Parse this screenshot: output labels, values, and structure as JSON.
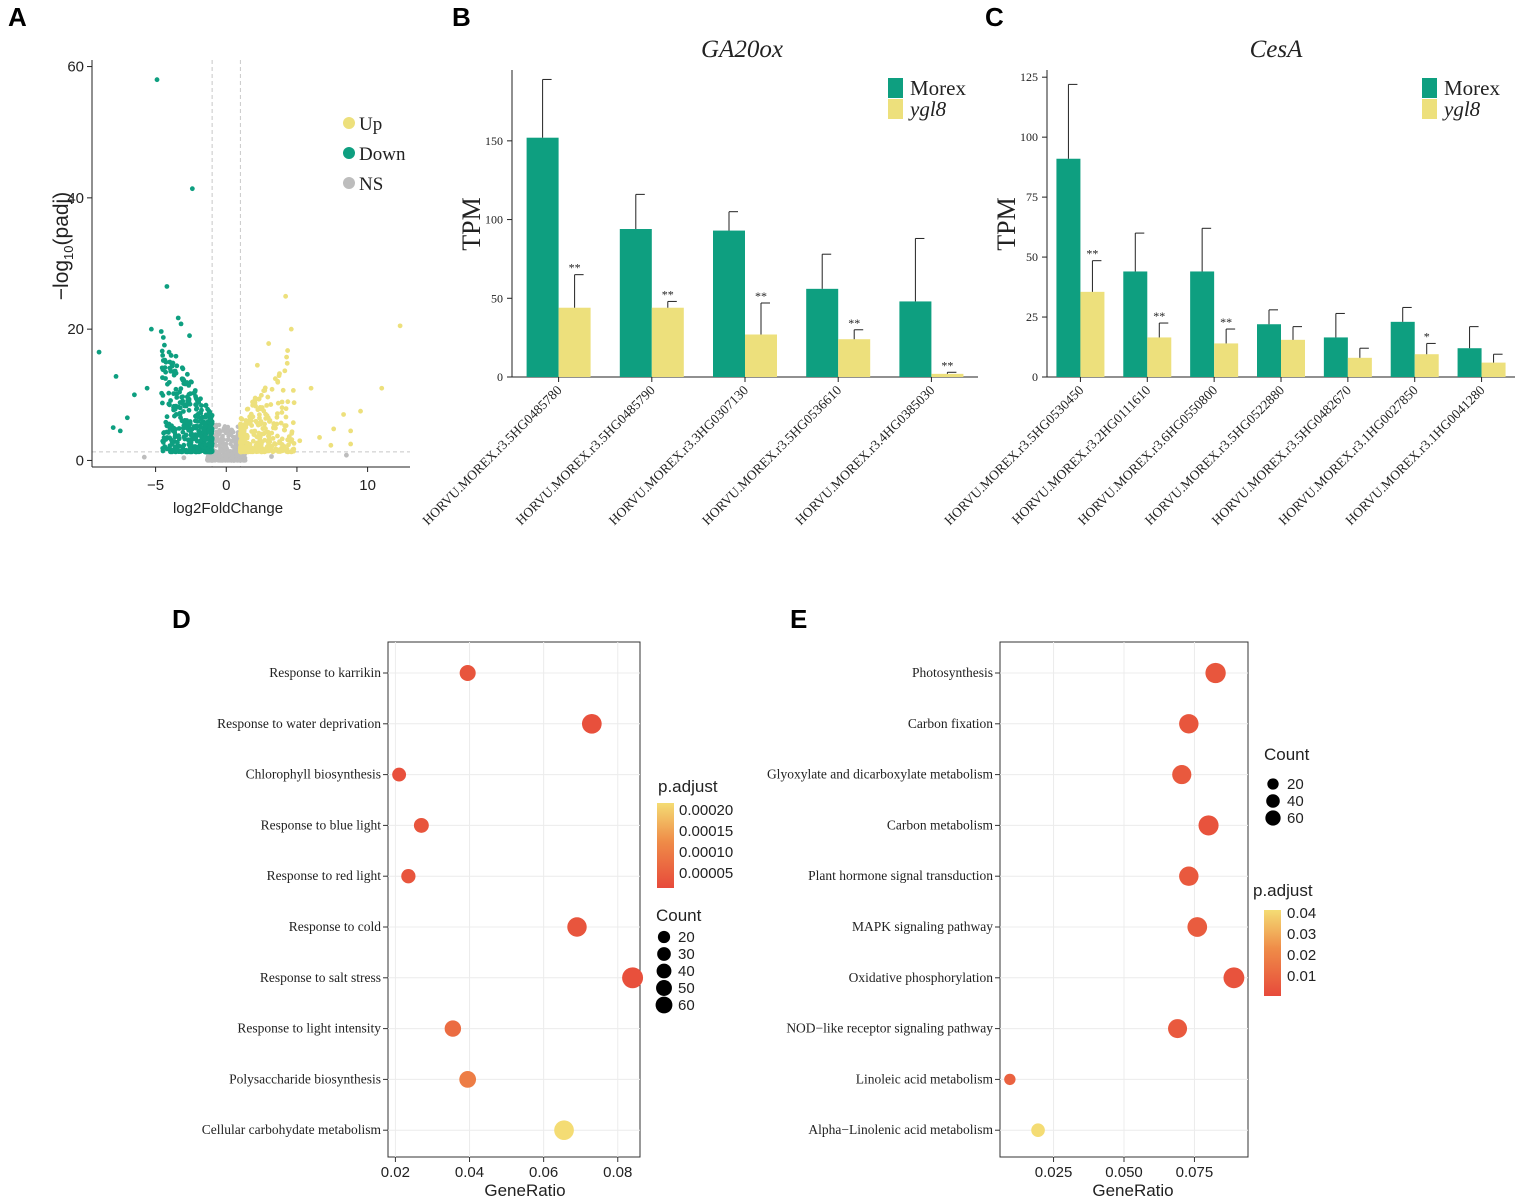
{
  "colors": {
    "teal": "#0e9f80",
    "yellow": "#ede07c",
    "grey": "#bdbdbd",
    "red": "#e74a3b",
    "orange": "#ef8c48",
    "gold": "#f4dc74"
  },
  "panel_labels": {
    "A": "A",
    "B": "B",
    "C": "C",
    "D": "D",
    "E": "E"
  },
  "chart_data": [
    {
      "panel": "A",
      "type": "scatter",
      "xlabel": "log2FoldChange",
      "ylabel_prefix": "−log",
      "ylabel_sub": "10",
      "ylabel_suffix": "(padj)",
      "xlim": [
        -9.5,
        13
      ],
      "ylim": [
        -1,
        61
      ],
      "xticks": [
        {
          "v": -5,
          "t": "−5"
        },
        {
          "v": 0,
          "t": "0"
        },
        {
          "v": 5,
          "t": "5"
        },
        {
          "v": 10,
          "t": "10"
        }
      ],
      "yticks": [
        {
          "v": 0,
          "t": "0"
        },
        {
          "v": 20,
          "t": "20"
        },
        {
          "v": 40,
          "t": "40"
        },
        {
          "v": 60,
          "t": "60"
        }
      ],
      "thresholds": {
        "x": [
          -1,
          1
        ],
        "y": 1.3
      },
      "legend": [
        {
          "name": "Up",
          "color": "#ede07c"
        },
        {
          "name": "Down",
          "color": "#0e9f80"
        },
        {
          "name": "NS",
          "color": "#bdbdbd"
        }
      ],
      "points": {
        "up": [
          [
            12.3,
            20.5
          ],
          [
            11.0,
            11.0
          ],
          [
            9.5,
            7.5
          ],
          [
            8.3,
            7.0
          ],
          [
            8.8,
            4.5
          ],
          [
            7.6,
            4.8
          ],
          [
            6.6,
            3.5
          ],
          [
            5.2,
            3.0
          ],
          [
            4.2,
            25.0
          ],
          [
            4.6,
            20.0
          ],
          [
            3.0,
            17.8
          ],
          [
            6.0,
            11.0
          ],
          [
            4.8,
            8.8
          ],
          [
            7.4,
            2.3
          ],
          [
            8.8,
            2.5
          ],
          [
            2.2,
            14.5
          ]
        ],
        "down": [
          [
            -4.9,
            58.0
          ],
          [
            -2.4,
            41.4
          ],
          [
            -4.2,
            26.5
          ],
          [
            -9.0,
            16.5
          ],
          [
            -7.8,
            12.8
          ],
          [
            -4.5,
            16.0
          ],
          [
            -5.3,
            20.0
          ],
          [
            -6.5,
            10.0
          ],
          [
            -7.0,
            6.5
          ],
          [
            -7.5,
            4.5
          ],
          [
            -8.0,
            5.0
          ],
          [
            -5.6,
            11.0
          ],
          [
            -3.4,
            21.7
          ],
          [
            -3.2,
            20.8
          ],
          [
            -2.6,
            19.0
          ],
          [
            -4.0,
            15.0
          ]
        ],
        "ns": [
          [
            8.5,
            0.8
          ],
          [
            -5.8,
            0.5
          ],
          [
            3.2,
            0.6
          ],
          [
            -3.0,
            0.4
          ]
        ]
      }
    },
    {
      "panel": "B",
      "type": "bar",
      "title": "GA20ox",
      "ylabel": "TPM",
      "ylim": [
        0,
        195
      ],
      "yticks": [
        0,
        50,
        100,
        150
      ],
      "categories": [
        "HORVU.MOREX.r3.5HG0485780",
        "HORVU.MOREX.r3.5HG0485790",
        "HORVU.MOREX.r3.3HG0307130",
        "HORVU.MOREX.r3.5HG0536610",
        "HORVU.MOREX.r3.4HG0385030"
      ],
      "series": [
        {
          "name": "Morex",
          "values": [
            152,
            94,
            93,
            56,
            48
          ],
          "errors": [
            37,
            22,
            12,
            22,
            40
          ]
        },
        {
          "name": "ygl8",
          "values": [
            44,
            44,
            27,
            24,
            2
          ],
          "errors": [
            21,
            4,
            20,
            6,
            1
          ]
        }
      ],
      "significance": [
        "**",
        "**",
        "**",
        "**",
        "**"
      ]
    },
    {
      "panel": "C",
      "type": "bar",
      "title": "CesA",
      "ylabel": "TPM",
      "ylim": [
        0,
        128
      ],
      "yticks": [
        0,
        25,
        50,
        75,
        100,
        125
      ],
      "categories": [
        "HORVU.MOREX.r3.5HG0530450",
        "HORVU.MOREX.r3.2HG0111610",
        "HORVU.MOREX.r3.6HG0550800",
        "HORVU.MOREX.r3.5HG0522880",
        "HORVU.MOREX.r3.5HG0482670",
        "HORVU.MOREX.r3.1HG0027850",
        "HORVU.MOREX.r3.1HG0041280"
      ],
      "series": [
        {
          "name": "Morex",
          "values": [
            91,
            44,
            44,
            22,
            16.5,
            23,
            12
          ],
          "errors": [
            31,
            16,
            18,
            6,
            10,
            6,
            9
          ]
        },
        {
          "name": "ygl8",
          "values": [
            35.5,
            16.5,
            14,
            15.5,
            8,
            9.5,
            6
          ],
          "errors": [
            13,
            6,
            6,
            5.5,
            4,
            4.5,
            3.5
          ]
        }
      ],
      "significance": [
        "**",
        "**",
        "**",
        "",
        "",
        "*",
        ""
      ]
    },
    {
      "panel": "D",
      "type": "scatter",
      "xlabel": "GeneRatio",
      "xlim": [
        0.018,
        0.086
      ],
      "xticks": [
        {
          "v": 0.02,
          "t": "0.02"
        },
        {
          "v": 0.04,
          "t": "0.04"
        },
        {
          "v": 0.06,
          "t": "0.06"
        },
        {
          "v": 0.08,
          "t": "0.08"
        }
      ],
      "terms": [
        "Response to karrikin",
        "Response to water deprivation ",
        "Chlorophyll biosynthesis",
        "Response to blue light",
        "Response to red light",
        "Response to cold",
        "Response to salt stress",
        "Response to light intensity",
        "Polysaccharide biosynthesis",
        "Cellular carbohydate metabolism"
      ],
      "gene_ratio": [
        0.0395,
        0.073,
        0.021,
        0.027,
        0.0235,
        0.069,
        0.084,
        0.0355,
        0.0395,
        0.0655
      ],
      "count": [
        28,
        52,
        17,
        22,
        19,
        50,
        62,
        30,
        32,
        52
      ],
      "p_adjust": [
        2e-05,
        1e-05,
        1e-05,
        2e-05,
        2e-05,
        2e-05,
        1e-05,
        6e-05,
        9e-05,
        0.00021
      ],
      "color_legend": {
        "title": "p.adjust",
        "ticks": [
          "0.00020",
          "0.00015",
          "0.00010",
          "0.00005"
        ]
      },
      "size_legend": {
        "title": "Count",
        "ticks": [
          "20",
          "30",
          "40",
          "50",
          "60"
        ]
      }
    },
    {
      "panel": "E",
      "type": "scatter",
      "xlabel": "GeneRatio",
      "xlim": [
        0.006,
        0.094
      ],
      "xticks": [
        {
          "v": 0.025,
          "t": "0.025"
        },
        {
          "v": 0.05,
          "t": "0.050"
        },
        {
          "v": 0.075,
          "t": "0.075"
        }
      ],
      "terms": [
        "Photosynthesis",
        "Carbon fixation",
        "Glyoxylate and dicarboxylate metabolism",
        "Carbon metabolism",
        "Plant hormone signal transduction",
        "MAPK signaling pathway",
        "Oxidative phosphorylation",
        "NOD−like receptor signaling pathway",
        "Linoleic acid metabolism",
        "Alpha−Linolenic acid metabolism"
      ],
      "gene_ratio": [
        0.0825,
        0.073,
        0.0705,
        0.08,
        0.073,
        0.076,
        0.089,
        0.069,
        0.0095,
        0.0195
      ],
      "count": [
        57,
        50,
        48,
        55,
        50,
        52,
        61,
        47,
        8,
        16
      ],
      "p_adjust": [
        0.004,
        0.004,
        0.005,
        0.003,
        0.005,
        0.006,
        0.003,
        0.005,
        0.008,
        0.04
      ],
      "color_legend": {
        "title": "p.adjust",
        "ticks": [
          "0.04",
          "0.03",
          "0.02",
          "0.01"
        ]
      },
      "size_legend": {
        "title": "Count",
        "ticks": [
          "20",
          "40",
          "60"
        ]
      }
    }
  ]
}
